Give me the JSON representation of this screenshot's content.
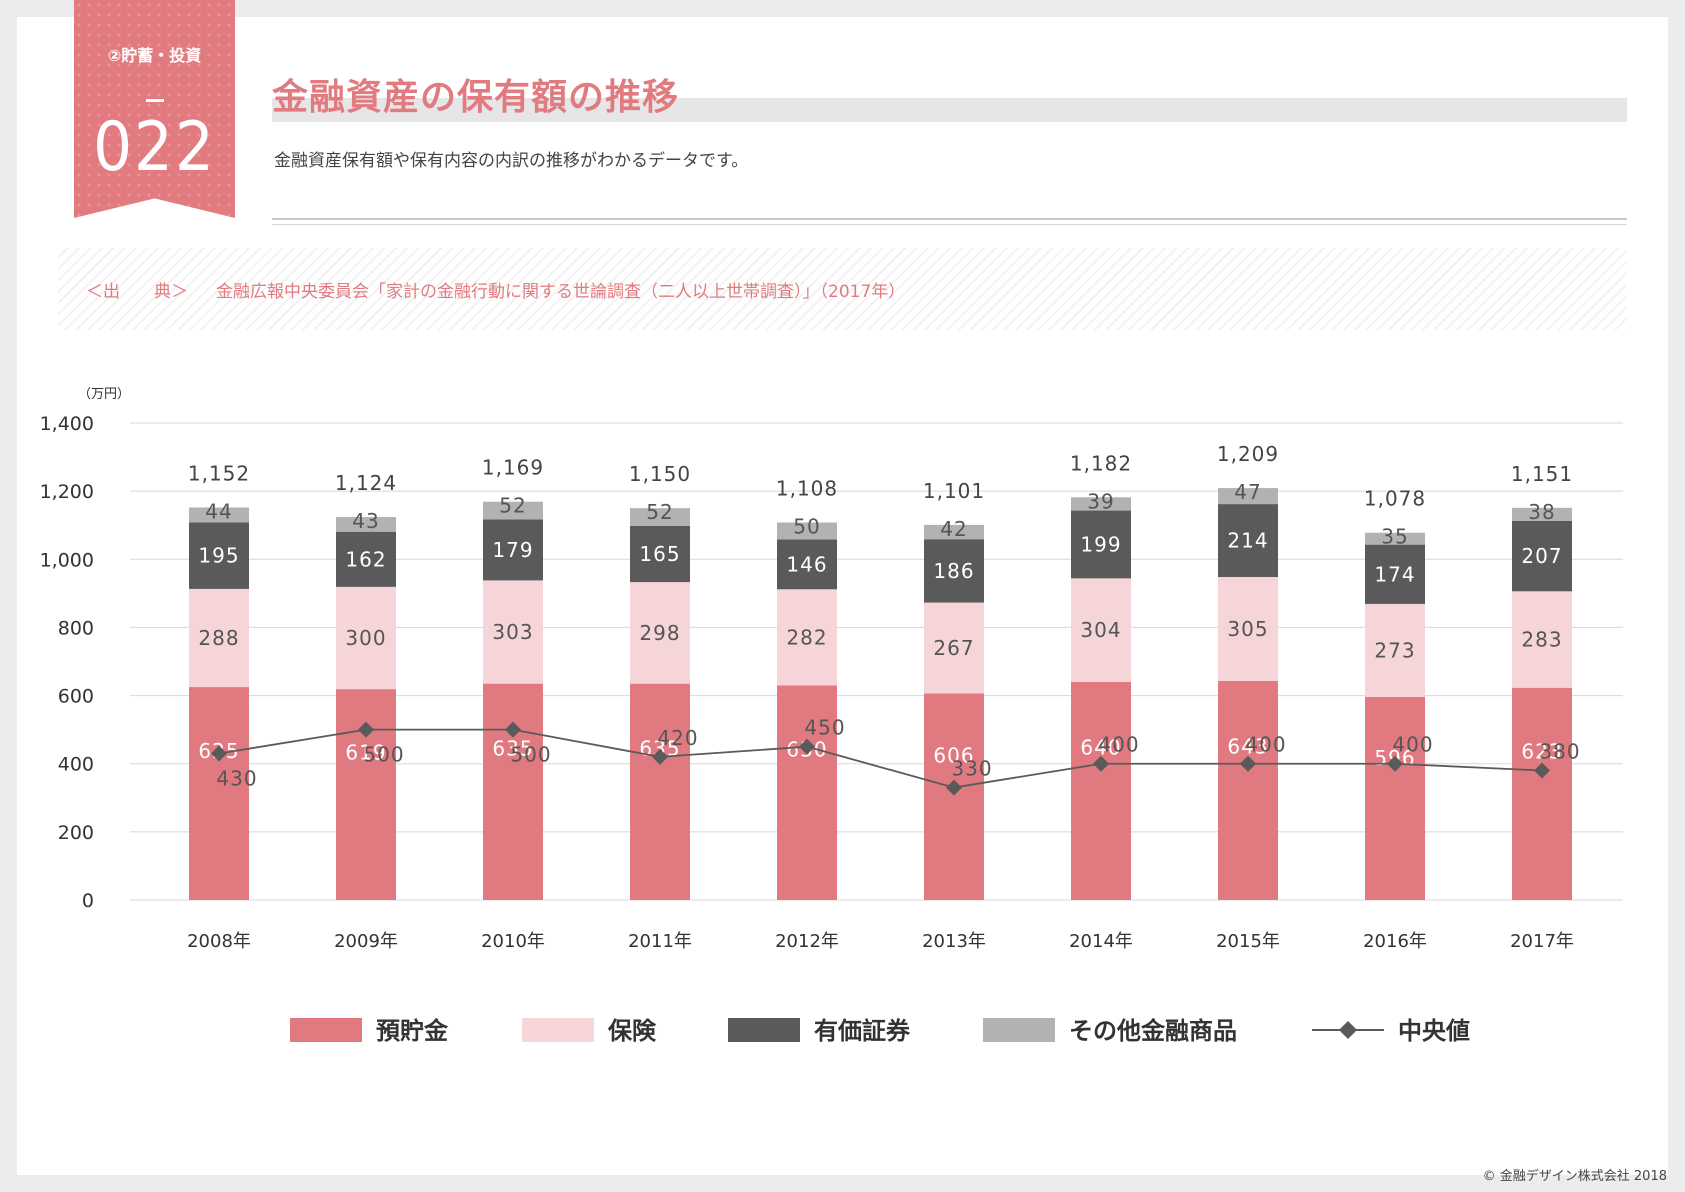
{
  "header": {
    "category": "②貯蓄・投資",
    "number": "022",
    "title": "金融資産の保有額の推移",
    "description": "金融資産保有額や保有内容の内訳の推移がわかるデータです。"
  },
  "source": {
    "label": "＜出　　典＞",
    "text": "金融広報中央委員会「家計の金融行動に関する世論調査（二人以上世帯調査）」（2017年）"
  },
  "unit_label": "（万円）",
  "copyright": "© 金融デザイン株式会社 2018",
  "colors": {
    "deposit": "#e07a80",
    "insurance": "#f5d5d7",
    "securities": "#5a5a5a",
    "other": "#b2b2b2",
    "median": "#5a5a5a",
    "accent": "#e17b80"
  },
  "chart_data": {
    "type": "bar",
    "stacked": true,
    "ylim": [
      0,
      1400
    ],
    "yticks": [
      "0",
      "200",
      "400",
      "600",
      "800",
      "1,000",
      "1,200",
      "1,400"
    ],
    "grid": true,
    "legend_position": "bottom",
    "categories": [
      "2008年",
      "2009年",
      "2010年",
      "2011年",
      "2012年",
      "2013年",
      "2014年",
      "2015年",
      "2016年",
      "2017年"
    ],
    "totals": [
      "1,152",
      "1,124",
      "1,169",
      "1,150",
      "1,108",
      "1,101",
      "1,182",
      "1,209",
      "1,078",
      "1,151"
    ],
    "series": [
      {
        "name": "預貯金",
        "key": "deposit",
        "values": [
          625,
          619,
          635,
          635,
          630,
          606,
          640,
          643,
          596,
          623
        ]
      },
      {
        "name": "保険",
        "key": "insurance",
        "values": [
          288,
          300,
          303,
          298,
          282,
          267,
          304,
          305,
          273,
          283
        ]
      },
      {
        "name": "有価証券",
        "key": "securities",
        "values": [
          195,
          162,
          179,
          165,
          146,
          186,
          199,
          214,
          174,
          207
        ]
      },
      {
        "name": "その他金融商品",
        "key": "other",
        "values": [
          44,
          43,
          52,
          52,
          50,
          42,
          39,
          47,
          35,
          38
        ]
      }
    ],
    "line": {
      "name": "中央値",
      "values": [
        430,
        500,
        500,
        420,
        450,
        330,
        400,
        400,
        400,
        380
      ]
    }
  }
}
